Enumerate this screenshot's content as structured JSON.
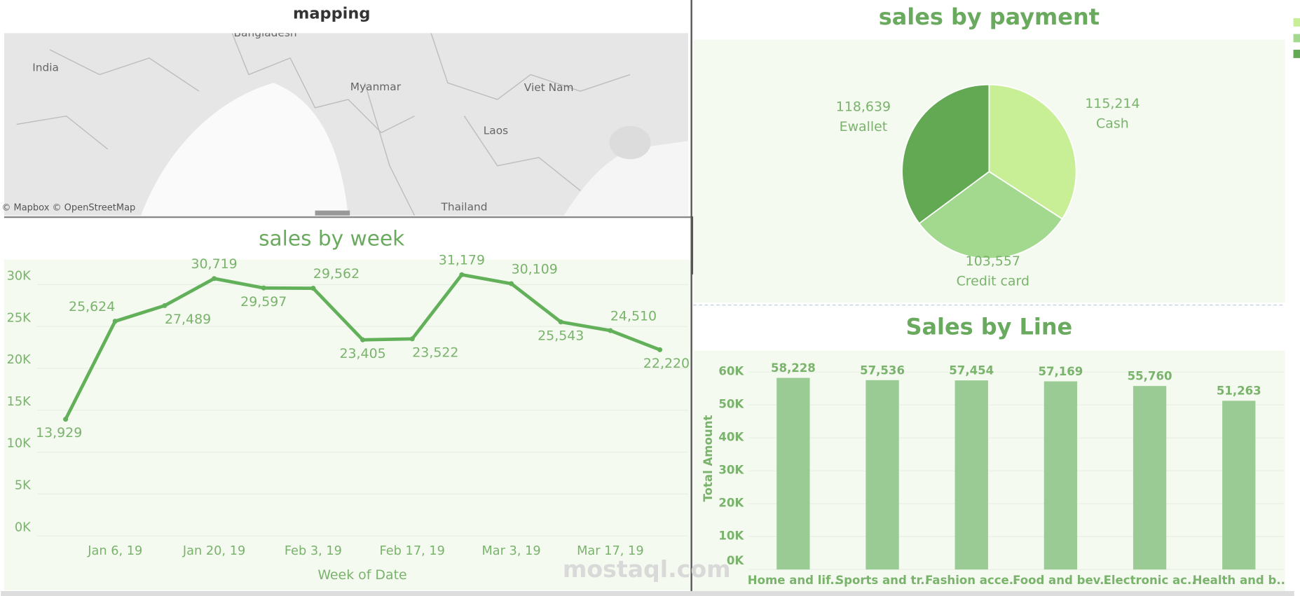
{
  "chart_data": [
    {
      "type": "map",
      "title": "mapping",
      "labels": [
        "India",
        "Bangladesh",
        "Myanmar",
        "Viet Nam",
        "Laos",
        "Thailand"
      ],
      "attribution": "© Mapbox © OpenStreetMap"
    },
    {
      "type": "line",
      "title": "sales by week",
      "x_label": "Week of Date",
      "x": [
        "2018-12-30",
        "2019-01-06",
        "2019-01-13",
        "2019-01-20",
        "2019-01-27",
        "2019-02-03",
        "2019-02-10",
        "2019-02-17",
        "2019-02-24",
        "2019-03-03",
        "2019-03-10",
        "2019-03-17",
        "2019-03-24"
      ],
      "series": [
        {
          "name": "Total Amount",
          "color": "#62b15a",
          "values": [
            13929,
            25624,
            27489,
            30719,
            29597,
            29562,
            23405,
            23522,
            31179,
            30109,
            25543,
            24510,
            22220
          ],
          "value_labels": [
            "13,929",
            "25,624",
            "27,489",
            "30,719",
            "29,597",
            "29,562",
            "23,405",
            "23,522",
            "31,179",
            "30,109",
            "25,543",
            "24,510",
            "22,220"
          ]
        }
      ],
      "xlim": [
        "2018-12-26",
        "2019-03-28"
      ],
      "xticks": [
        {
          "value": "2019-01-06",
          "label": "Jan 6, 19"
        },
        {
          "value": "2019-01-20",
          "label": "Jan 20, 19"
        },
        {
          "value": "2019-02-03",
          "label": "Feb 3, 19"
        },
        {
          "value": "2019-02-17",
          "label": "Feb 17, 19"
        },
        {
          "value": "2019-03-03",
          "label": "Mar 3, 19"
        },
        {
          "value": "2019-03-17",
          "label": "Mar 17, 19"
        }
      ],
      "ylim": [
        0,
        33000
      ],
      "yticks": [
        {
          "value": 0,
          "label": "0K"
        },
        {
          "value": 5000,
          "label": "5K"
        },
        {
          "value": 10000,
          "label": "10K"
        },
        {
          "value": 15000,
          "label": "15K"
        },
        {
          "value": 20000,
          "label": "20K"
        },
        {
          "value": 25000,
          "label": "25K"
        },
        {
          "value": 30000,
          "label": "30K"
        }
      ],
      "grid": true
    },
    {
      "type": "pie",
      "title": "sales by payment",
      "categories": [
        "Cash",
        "Credit card",
        "Ewallet"
      ],
      "values": [
        115214,
        103557,
        118639
      ],
      "value_labels": [
        "115,214",
        "103,557",
        "118,639"
      ],
      "colors": [
        "#c8ef96",
        "#a3d98f",
        "#63a852"
      ]
    },
    {
      "type": "bar",
      "title": "Sales by Line",
      "y_label": "Total Amount",
      "categories": [
        "Home and lif..",
        "Sports and tr..",
        "Fashion acce..",
        "Food and bev..",
        "Electronic ac..",
        "Health and b.."
      ],
      "values": [
        58228,
        57536,
        57454,
        57169,
        55760,
        51263
      ],
      "value_labels": [
        "58,228",
        "57,536",
        "57,454",
        "57,169",
        "55,760",
        "51,263"
      ],
      "color": "#9acb94",
      "ylim": [
        0,
        66000
      ],
      "yticks": [
        {
          "value": 0,
          "label": "0K"
        },
        {
          "value": 10000,
          "label": "10K"
        },
        {
          "value": 20000,
          "label": "20K"
        },
        {
          "value": 30000,
          "label": "30K"
        },
        {
          "value": 40000,
          "label": "40K"
        },
        {
          "value": 50000,
          "label": "50K"
        },
        {
          "value": 60000,
          "label": "60K"
        }
      ],
      "grid": true
    }
  ]
}
